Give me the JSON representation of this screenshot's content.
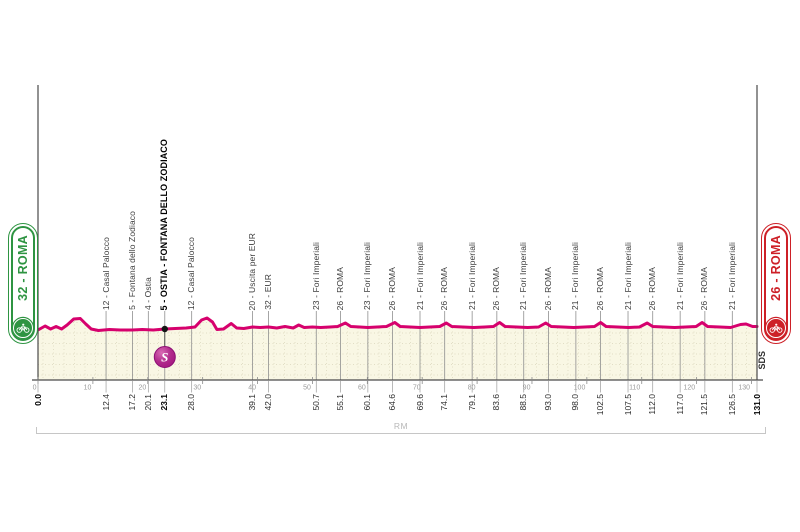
{
  "badges": {
    "start": {
      "label": "32 - ROMA",
      "color": "#2e9442"
    },
    "finish": {
      "label": "26 - ROMA",
      "color": "#cd2027"
    }
  },
  "watermark": {
    "text": "SDS"
  },
  "region_bracket": {
    "label": "RM"
  },
  "sprint": {
    "symbol": "S",
    "km": 23.1
  },
  "chart_data": {
    "type": "area",
    "title": "",
    "xlim": [
      0,
      131
    ],
    "grid": true,
    "x_axis_ticks": [
      0,
      10,
      20,
      30,
      40,
      50,
      60,
      70,
      80,
      90,
      100,
      110,
      120,
      130
    ],
    "colors": {
      "line": "#d6016d",
      "fill": "#f9f7e4",
      "grid": "#d9d5ba",
      "axis": "#4a4a4a",
      "waypoint_line": "#8f8f8f",
      "tick_text": "#9b9b9b",
      "sprint_fill": "#a3177f",
      "sprint_stroke": "#8c0e74"
    },
    "waypoints": [
      {
        "km": 12.4,
        "label": "12 - Casal Palocco"
      },
      {
        "km": 17.2,
        "label": "5 - Fontana dello Zodiaco"
      },
      {
        "km": 20.1,
        "label": "4 - Ostia"
      },
      {
        "km": 23.1,
        "label": "5 - OSTIA - FONTANA DELLO ZODIACO",
        "bold": true,
        "sprint": true
      },
      {
        "km": 28.0,
        "label": "12 - Casal Palocco"
      },
      {
        "km": 39.1,
        "label": "20 - Uscita per EUR"
      },
      {
        "km": 42.0,
        "label": "32 - EUR"
      },
      {
        "km": 50.7,
        "label": "23 - Fori Imperiali"
      },
      {
        "km": 55.1,
        "label": "26 - ROMA"
      },
      {
        "km": 60.1,
        "label": "23 - Fori Imperiali"
      },
      {
        "km": 64.6,
        "label": "26 - ROMA"
      },
      {
        "km": 69.6,
        "label": "21 - Fori Imperiali"
      },
      {
        "km": 74.1,
        "label": "26 - ROMA"
      },
      {
        "km": 79.1,
        "label": "21 - Fori Imperiali"
      },
      {
        "km": 83.6,
        "label": "26 - ROMA"
      },
      {
        "km": 88.5,
        "label": "21 - Fori Imperiali"
      },
      {
        "km": 93.0,
        "label": "26 - ROMA"
      },
      {
        "km": 98.0,
        "label": "21 - Fori Imperiali"
      },
      {
        "km": 102.5,
        "label": "26 - ROMA"
      },
      {
        "km": 107.5,
        "label": "21 - Fori Imperiali"
      },
      {
        "km": 112.0,
        "label": "26 - ROMA"
      },
      {
        "km": 117.0,
        "label": "21 - Fori Imperiali"
      },
      {
        "km": 121.5,
        "label": "26 - ROMA"
      },
      {
        "km": 126.5,
        "label": "21 - Fori Imperiali"
      }
    ],
    "km_ticks": [
      {
        "km": 0.0,
        "text": "0.0",
        "bold": true
      },
      {
        "km": 12.4,
        "text": "12.4"
      },
      {
        "km": 17.2,
        "text": "17.2"
      },
      {
        "km": 20.1,
        "text": "20.1"
      },
      {
        "km": 23.1,
        "text": "23.1",
        "bold": true
      },
      {
        "km": 28.0,
        "text": "28.0"
      },
      {
        "km": 39.1,
        "text": "39.1"
      },
      {
        "km": 42.0,
        "text": "42.0"
      },
      {
        "km": 50.7,
        "text": "50.7"
      },
      {
        "km": 55.1,
        "text": "55.1"
      },
      {
        "km": 60.1,
        "text": "60.1"
      },
      {
        "km": 64.6,
        "text": "64.6"
      },
      {
        "km": 69.6,
        "text": "69.6"
      },
      {
        "km": 74.1,
        "text": "74.1"
      },
      {
        "km": 79.1,
        "text": "79.1"
      },
      {
        "km": 83.6,
        "text": "83.6"
      },
      {
        "km": 88.5,
        "text": "88.5"
      },
      {
        "km": 93.0,
        "text": "93.0"
      },
      {
        "km": 98.0,
        "text": "98.0"
      },
      {
        "km": 102.5,
        "text": "102.5"
      },
      {
        "km": 107.5,
        "text": "107.5"
      },
      {
        "km": 112.0,
        "text": "112.0"
      },
      {
        "km": 117.0,
        "text": "117.0"
      },
      {
        "km": 121.5,
        "text": "121.5"
      },
      {
        "km": 126.5,
        "text": "126.5"
      },
      {
        "km": 131.0,
        "text": "131.0",
        "bold": true
      }
    ],
    "profile": {
      "units": "relative height above baseline (no y-axis labels shown)",
      "points": [
        [
          0,
          50
        ],
        [
          1.3,
          54
        ],
        [
          2.3,
          51
        ],
        [
          3.3,
          53.5
        ],
        [
          4.3,
          51
        ],
        [
          5.3,
          55
        ],
        [
          6.5,
          61
        ],
        [
          7.7,
          61.5
        ],
        [
          8.7,
          56
        ],
        [
          9.7,
          51
        ],
        [
          11,
          49.5
        ],
        [
          13,
          50.5
        ],
        [
          15,
          50
        ],
        [
          17.2,
          50
        ],
        [
          19,
          50.5
        ],
        [
          21,
          50
        ],
        [
          23.1,
          51
        ],
        [
          25,
          51.5
        ],
        [
          27,
          52
        ],
        [
          28.6,
          53
        ],
        [
          29.8,
          60
        ],
        [
          30.8,
          62
        ],
        [
          31.8,
          58
        ],
        [
          32.6,
          50.5
        ],
        [
          33.8,
          51
        ],
        [
          35.2,
          56.5
        ],
        [
          36.2,
          52
        ],
        [
          37.5,
          51.5
        ],
        [
          39.1,
          53
        ],
        [
          40.5,
          52.5
        ],
        [
          42,
          53
        ],
        [
          43.5,
          52
        ],
        [
          45,
          53.5
        ],
        [
          46.5,
          52
        ],
        [
          47.5,
          55
        ],
        [
          48.5,
          52.5
        ],
        [
          50,
          53
        ],
        [
          51.5,
          52.5
        ],
        [
          53.2,
          53
        ],
        [
          54.6,
          53.5
        ],
        [
          56,
          57
        ],
        [
          57,
          53.5
        ],
        [
          58.6,
          53
        ],
        [
          60.1,
          52.5
        ],
        [
          61.8,
          53
        ],
        [
          63.5,
          53.5
        ],
        [
          65,
          57.5
        ],
        [
          66,
          53.5
        ],
        [
          67.8,
          53
        ],
        [
          69.6,
          52.5
        ],
        [
          71.4,
          53
        ],
        [
          73.2,
          53.5
        ],
        [
          74.4,
          57
        ],
        [
          75.4,
          53.5
        ],
        [
          77.4,
          53
        ],
        [
          79.4,
          52.5
        ],
        [
          81.4,
          53
        ],
        [
          83,
          53.5
        ],
        [
          84.1,
          57.5
        ],
        [
          85.1,
          53.5
        ],
        [
          87.2,
          53
        ],
        [
          89.2,
          52.5
        ],
        [
          91.2,
          53
        ],
        [
          92.5,
          57
        ],
        [
          93.5,
          53.5
        ],
        [
          95.6,
          53
        ],
        [
          97.6,
          52.5
        ],
        [
          99.6,
          53
        ],
        [
          101.4,
          53.5
        ],
        [
          102.5,
          57.5
        ],
        [
          103.5,
          53.5
        ],
        [
          105.6,
          53
        ],
        [
          107.6,
          52.5
        ],
        [
          109.6,
          53
        ],
        [
          111,
          57
        ],
        [
          112,
          53.5
        ],
        [
          114,
          53
        ],
        [
          116,
          52.5
        ],
        [
          118,
          53
        ],
        [
          119.9,
          53.5
        ],
        [
          121,
          57.5
        ],
        [
          122,
          53.5
        ],
        [
          124.2,
          53
        ],
        [
          126.2,
          52.5
        ],
        [
          128,
          55.5
        ],
        [
          129,
          56
        ],
        [
          130.2,
          53.5
        ],
        [
          131,
          53.5
        ]
      ]
    }
  }
}
